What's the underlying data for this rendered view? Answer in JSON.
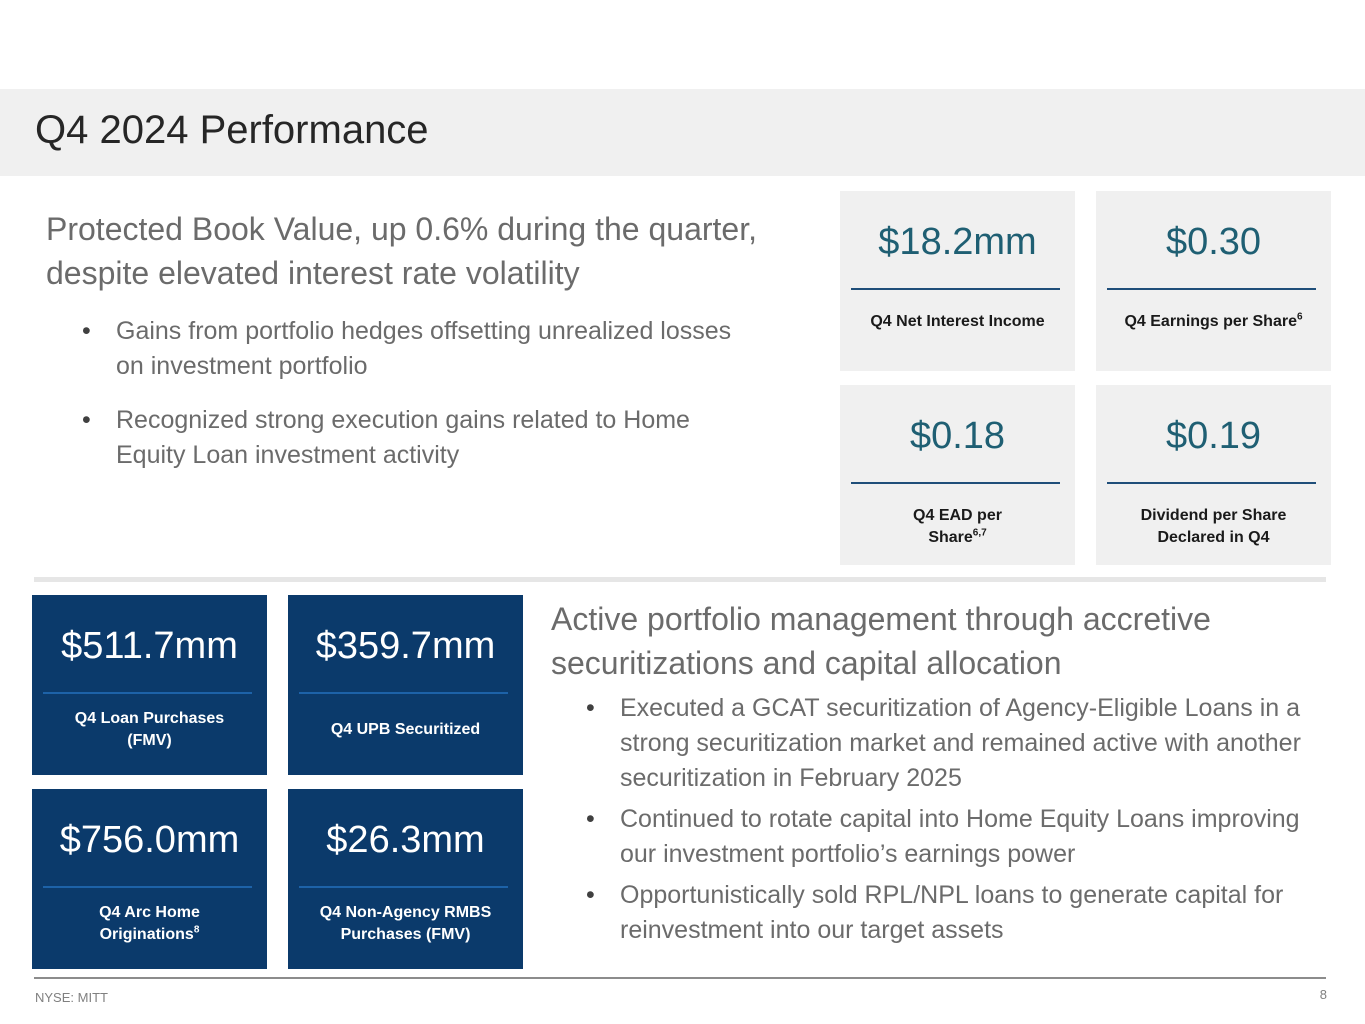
{
  "title": "Q4 2024 Performance",
  "section1": {
    "heading": "Protected Book Value, up 0.6% during the quarter, despite elevated interest rate volatility",
    "bullets": [
      "Gains from portfolio hedges offsetting unrealized losses on investment portfolio",
      "Recognized strong execution gains related to Home Equity Loan investment activity"
    ]
  },
  "stats": [
    {
      "value": "$18.2mm",
      "label": "Q4 Net Interest Income",
      "sup": ""
    },
    {
      "value": "$0.30",
      "label": "Q4 Earnings per Share",
      "sup": "6"
    },
    {
      "value": "$0.18",
      "label": "Q4 EAD per Share",
      "sup": "6,7"
    },
    {
      "value": "$0.19",
      "label": "Dividend per Share Declared in Q4",
      "sup": ""
    }
  ],
  "navy_stats": [
    {
      "value": "$511.7mm",
      "label": "Q4 Loan Purchases (FMV)",
      "sup": ""
    },
    {
      "value": "$359.7mm",
      "label": "Q4 UPB Securitized",
      "sup": ""
    },
    {
      "value": "$756.0mm",
      "label": "Q4 Arc Home Originations",
      "sup": "8"
    },
    {
      "value": "$26.3mm",
      "label": "Q4 Non-Agency RMBS Purchases (FMV)",
      "sup": ""
    }
  ],
  "section2": {
    "heading": "Active portfolio management through accretive securitizations and capital allocation",
    "bullets": [
      "Executed a GCAT securitization of Agency-Eligible Loans in a strong securitization market and remained active with another securitization in February 2025",
      "Continued to rotate capital into Home Equity Loans improving our investment portfolio’s earnings power",
      "Opportunistically sold RPL/NPL loans to generate capital for reinvestment into our target assets"
    ]
  },
  "footer": {
    "ticker": "NYSE: MITT",
    "page": "8"
  },
  "bullet_glyph": "•",
  "colors": {
    "title_band": "#f0f0f0",
    "navy": "#0b3a6b",
    "teal_value": "#1f5f73"
  }
}
